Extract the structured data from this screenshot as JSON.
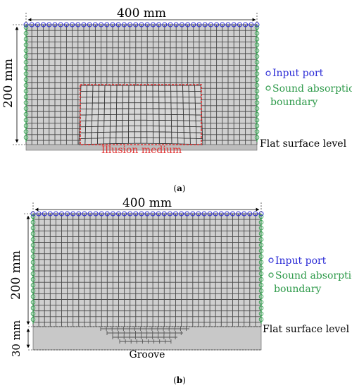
{
  "panel_a": {
    "caption": "(a)",
    "caption_letter": "a",
    "width_label": "400 mm",
    "height_label": "200 mm",
    "illusion_label": "Illusion medium",
    "flat_surface_label": "Flat surface level",
    "legend": {
      "input_port": "Input port",
      "absorption_line1": "Sound absorption",
      "absorption_line2": "boundary"
    }
  },
  "panel_b": {
    "caption": "(b)",
    "caption_letter": "b",
    "width_label": "400 mm",
    "height_label": "200 mm",
    "depth_label": "30 mm",
    "flat_surface_label": "Flat surface level",
    "groove_label": "Groove",
    "legend": {
      "input_port": "Input port",
      "absorption_line1": "Sound absorption",
      "absorption_line2": "boundary"
    }
  },
  "colors": {
    "mesh": "#4a4a4a",
    "domain_fill": "#cfcfcf",
    "input_port": "#2b2bd6",
    "absorption": "#2e9a4a",
    "illusion": "#e03030",
    "dimension": "#000000"
  }
}
